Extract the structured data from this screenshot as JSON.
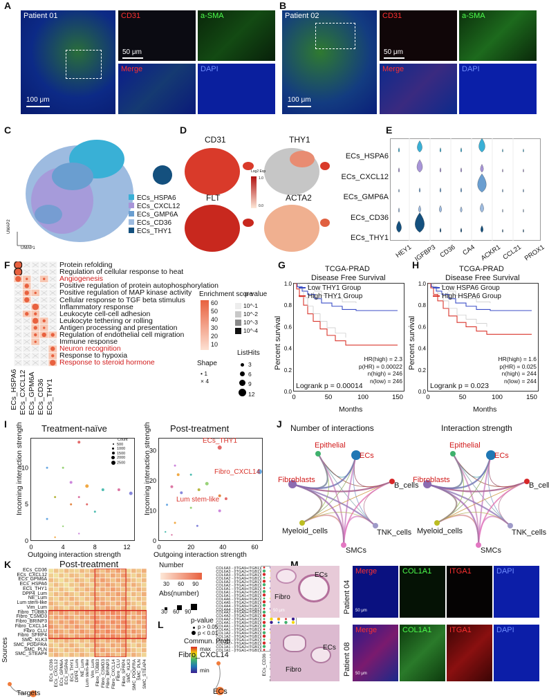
{
  "panel_letters": [
    "A",
    "B",
    "C",
    "D",
    "E",
    "F",
    "G",
    "H",
    "I",
    "J",
    "K",
    "L",
    "M"
  ],
  "panelA": {
    "patient": "Patient 01",
    "cd31": "CD31",
    "asma": "a-SMA",
    "merge": "Merge",
    "dapi": "DAPI",
    "scale_big": "100 μm",
    "scale_small": "50 μm"
  },
  "panelB": {
    "patient": "Patient 02",
    "cd31": "CD31",
    "asma": "a-SMA",
    "merge": "Merge",
    "dapi": "DAPI",
    "scale_big": "100 μm",
    "scale_small": "50 μm"
  },
  "panelC": {
    "legend": [
      "ECs_HSPA6",
      "ECs_CXCL12",
      "ECs_GMP6A",
      "ECs_CD36",
      "ECs_THY1"
    ],
    "colors": [
      "#39b0d6",
      "#a895d8",
      "#6a9ed0",
      "#9dbbe0",
      "#14507e"
    ],
    "xaxis": "UMAP1",
    "yaxis": "UMAP2"
  },
  "panelD": {
    "genes": [
      "CD31",
      "THY1",
      "FLT",
      "ACTA2"
    ],
    "scale_title": "Log2 Exp",
    "scale_max": "1.0",
    "scale_min": "0.0"
  },
  "panelE": {
    "rows": [
      "ECs_HSPA6",
      "ECs_CXCL12",
      "ECs_GMP6A",
      "ECs_CD36",
      "ECs_THY1"
    ],
    "genes": [
      "HEY1",
      "IGFBP3",
      "CD36",
      "CA4",
      "ACKR1",
      "CCL21",
      "PROX1"
    ]
  },
  "panelF": {
    "terms": [
      {
        "t": "Protein refolding",
        "red": false
      },
      {
        "t": "Regulation of cellular response to heat",
        "red": false
      },
      {
        "t": "Angiogenesis",
        "red": true
      },
      {
        "t": "Positive regulation of protein autophosphorylation",
        "red": false
      },
      {
        "t": "Positive regulation of MAP kinase activity",
        "red": false
      },
      {
        "t": "Cellular response to TGF beta stimulus",
        "red": false
      },
      {
        "t": "Inflammatory response",
        "red": false
      },
      {
        "t": "Leukocyte cell-cell adhesion",
        "red": false
      },
      {
        "t": "Leukocyte tethering or rolling",
        "red": false
      },
      {
        "t": "Antigen processing and presentation",
        "red": false
      },
      {
        "t": "Regulation of endothelial cell migration",
        "red": false
      },
      {
        "t": "Immune response",
        "red": false
      },
      {
        "t": "Neuron recognition",
        "red": true
      },
      {
        "t": "Response to hypoxia",
        "red": false
      },
      {
        "t": "Response to steroid hormone",
        "red": true
      }
    ],
    "columns": [
      "ECs_HSPA6",
      "ECs_CXCL12",
      "ECs_GPM6A",
      "ECs_CD36",
      "ECs_THY1"
    ],
    "legend_enrich": "Enrichment score",
    "enrich_ticks": [
      "60",
      "50",
      "40",
      "30",
      "20",
      "10"
    ],
    "legend_p": "p value",
    "p_ticks": [
      "10^-1",
      "10^-2",
      "10^-3",
      "10^-4"
    ],
    "legend_shape": "Shape",
    "shape_items": [
      "1",
      "4"
    ],
    "legend_hits": "ListHits",
    "hits_items": [
      "3",
      "6",
      "9",
      "12"
    ]
  },
  "panelG": {
    "title1": "TCGA-PRAD",
    "title2": "Disease Free Survival",
    "legend": [
      "Low THY1 Group",
      "High THY1 Group"
    ],
    "stats": [
      "HR(high) = 2.3",
      "p(HR) = 0.00022",
      "n(high) = 246",
      "n(low) = 246"
    ],
    "logrank": "Logrank p = 0.00014",
    "xlabel": "Months",
    "ylabel": "Percent survival",
    "xticks": [
      "0",
      "50",
      "100",
      "150"
    ],
    "yticks": [
      "0.0",
      "0.2",
      "0.4",
      "0.6",
      "0.8",
      "1.0"
    ]
  },
  "panelH": {
    "title1": "TCGA-PRAD",
    "title2": "Disease Free Survival",
    "legend": [
      "Low HSPA6 Group",
      "High HSPA6 Group"
    ],
    "stats": [
      "HR(high) = 1.6",
      "p(HR) = 0.025",
      "n(high) = 244",
      "n(low) = 244"
    ],
    "logrank": "Logrank p = 0.023",
    "xlabel": "Months",
    "ylabel": "Percent survival",
    "xticks": [
      "0",
      "50",
      "100",
      "150"
    ],
    "yticks": [
      "0.0",
      "0.2",
      "0.4",
      "0.6",
      "0.8",
      "1.0"
    ]
  },
  "panelI": {
    "left_title": "Treatment-naïve",
    "right_title": "Post-treatment",
    "xlabel": "Outgoing interaction strength",
    "ylabel": "Incoming interaction strength",
    "count_title": "Count",
    "count_items": [
      "500",
      "1000",
      "1500",
      "2000",
      "2500"
    ],
    "left_xticks": [
      "0",
      "4",
      "8",
      "12"
    ],
    "left_yticks": [
      "0",
      "5",
      "10"
    ],
    "right_xticks": [
      "0",
      "20",
      "40",
      "60"
    ],
    "right_yticks": [
      "0",
      "10",
      "20",
      "30"
    ],
    "highlight": [
      "ECs_THY1",
      "Fibro_CXCL14",
      "Lum stem-like"
    ]
  },
  "panelJ": {
    "titles": [
      "Number of interactions",
      "Interaction strength"
    ],
    "nodes": [
      "Epithelial",
      "ECs",
      "B_cells",
      "TNK_cells",
      "SMCs",
      "Myeloid_cells",
      "Fibroblasts"
    ]
  },
  "panelK": {
    "title": "Post-treatment",
    "rows": [
      "ECs_CD36",
      "ECs_CXCL12",
      "ECs_GPM6A",
      "ECs_HSPA6",
      "ECs_THY1",
      "DPP4_Lum",
      "NE_Lum",
      "Lum stem-like",
      "Vim_Lum",
      "Fibro_TUBB3",
      "Fibro_CSMD3",
      "Fibro_BRINP3",
      "Fibro_CXCL14",
      "Fibro_CLU",
      "Fibro_SFRP4",
      "SMC_KLK3",
      "SMC_PDGFRA",
      "SMC_PLN",
      "SMC_STEAP4"
    ],
    "cols": [
      "ECs_CD36",
      "ECs_CXCL12",
      "ECs_GPM6A",
      "ECs_HSPA6",
      "ECs_THY1",
      "DPP4_Lum",
      "NE_Lum",
      "Lum stem-like",
      "Vim_Lum",
      "Fibro_TUBB3",
      "Fibro_CSMD3",
      "Fibro_BRINP3",
      "Fibro_CXCL14",
      "Fibro_CLU",
      "Fibro_SFRP4",
      "SMC_KLK3",
      "SMC_PDGFRA",
      "SMC_PLN",
      "SMC_STEAP4"
    ],
    "legend_number": "Number",
    "number_ticks": [
      "30",
      "60",
      "90"
    ],
    "legend_abs": "Abs(number)",
    "abs_ticks": [
      "30",
      "60",
      "90"
    ],
    "sources": "Sources",
    "targets": "Targets"
  },
  "panelL": {
    "pairs": [
      "COL6A3 - (ITGA9+ITGB1)",
      "COL6A3 - (ITGA2+ITGB1)",
      "COL6A3 - (ITGA1+ITGB1)",
      "COL6A2 - (ITGA9+ITGB1)",
      "COL6A2 - (ITGA2+ITGB1)",
      "COL6A2 - (ITGA1+ITGB1)",
      "COL6A1 - (ITGA9+ITGB1)",
      "COL6A1 - (ITGA2+ITGB1)",
      "COL6A1 - (ITGA1+ITGB1)",
      "COL4A6 - (ITGA9+ITGB1)",
      "COL4A5 - (ITGA2+ITGB1)",
      "COL4A4 - (ITGA9+ITGB1)",
      "COL4A4 - (ITGA2+ITGB1)",
      "COL4A2 - (ITGA9+ITGB1)",
      "COL4A2 - (ITGA2+ITGB1)",
      "COL4A2 - (ITGA1+ITGB1)",
      "COL4A1 - (ITGA9+ITGB1)",
      "COL4A1 - (ITGA2+ITGB1)",
      "COL4A1 - (ITGA1+ITGB1)",
      "COL1A2 - (ITGA9+ITGB1)",
      "COL1A2 - (ITGA2+ITGB1)",
      "COL1A2 - (ITGA1+ITGB1)",
      "COL1A1 - (ITGA9+ITGB1)",
      "COL1A1 - (ITGA2+ITGB1)",
      "COL1A1 - (ITGA1+ITGB1)"
    ],
    "pval_title": "p-value",
    "pval_items": [
      "p > 0.05",
      "p < 0.01"
    ],
    "prob_title": "Commun. Prob.",
    "prob_max": "max",
    "prob_min": "min",
    "cols": [
      "ECs_CD36",
      "ECs_CXCL12",
      "ECs_GPM6A",
      "ECs_HSPA6",
      "ECs_THY1"
    ],
    "source": "Fibro_CXCL14",
    "target": "ECs"
  },
  "panelM": {
    "patients": [
      "Patient 04",
      "Patient 08"
    ],
    "channels": [
      "Merge",
      "COL1A1",
      "ITGA1",
      "DAPI"
    ],
    "he_labels": [
      "ECs",
      "Fibro"
    ],
    "scale": "50 μm"
  }
}
